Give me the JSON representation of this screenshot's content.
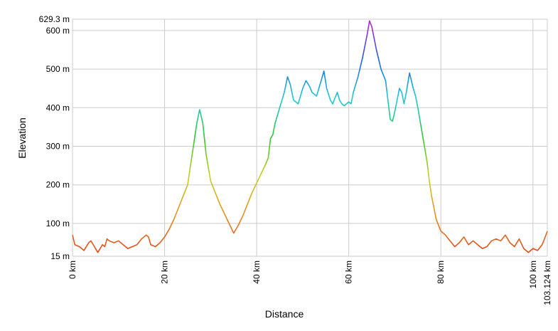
{
  "chart_data": {
    "type": "line",
    "x_label": "Distance",
    "y_label": "Elevation",
    "xlim": [
      0,
      103.124
    ],
    "ylim": [
      15,
      629.3
    ],
    "xticks": [
      {
        "value": 0,
        "label": "0 km"
      },
      {
        "value": 20,
        "label": "20 km"
      },
      {
        "value": 40,
        "label": "40 km"
      },
      {
        "value": 60,
        "label": "60 km"
      },
      {
        "value": 80,
        "label": "80 km"
      },
      {
        "value": 100,
        "label": "100 km"
      },
      {
        "value": 103.124,
        "label": "103.124 km"
      }
    ],
    "yticks": [
      {
        "value": 15,
        "label": "15 m"
      },
      {
        "value": 100,
        "label": "100 m"
      },
      {
        "value": 200,
        "label": "200 m"
      },
      {
        "value": 300,
        "label": "300 m"
      },
      {
        "value": 400,
        "label": "400 m"
      },
      {
        "value": 500,
        "label": "500 m"
      },
      {
        "value": 600,
        "label": "600 m"
      },
      {
        "value": 629.3,
        "label": "629.3 m"
      }
    ],
    "grid": true,
    "gradient_colors": [
      "#e0401c",
      "#e88a20",
      "#c8d020",
      "#30c830",
      "#20c8d8",
      "#1e60e0",
      "#c020e0"
    ],
    "series": [
      {
        "x": [
          0,
          0.5,
          1.5,
          2.5,
          3.5,
          4,
          4.5,
          5.5,
          6,
          6.5,
          7,
          7.5,
          8,
          9,
          10,
          11,
          12,
          13,
          14,
          15,
          16,
          16.5,
          17,
          18,
          19,
          20,
          21,
          22,
          23,
          24,
          25,
          26,
          27,
          27.6,
          28.3,
          29,
          30,
          31,
          32,
          33,
          34,
          35,
          36,
          37,
          38,
          39,
          40,
          41,
          42,
          42.5,
          43,
          43.5,
          44,
          45,
          46,
          46.7,
          47.3,
          48,
          49,
          50,
          50.7,
          51.5,
          52,
          53,
          54,
          54.6,
          55.2,
          56,
          56.5,
          57,
          57.5,
          58,
          58.5,
          59,
          60,
          60.5,
          61,
          62,
          63,
          64,
          64.5,
          65,
          66,
          67,
          68,
          68.5,
          69,
          69.5,
          70,
          71,
          71.5,
          72,
          72.5,
          73.2,
          74,
          74.5,
          75,
          76,
          77,
          77.5,
          78,
          79,
          80,
          81,
          82,
          83,
          84,
          85,
          86,
          87,
          88,
          89,
          90,
          91,
          92,
          93,
          94,
          95,
          96,
          97,
          98,
          99,
          100,
          101,
          102,
          102.5,
          103.124
        ],
        "values": [
          70,
          45,
          40,
          30,
          50,
          55,
          45,
          25,
          35,
          45,
          40,
          60,
          55,
          50,
          55,
          45,
          35,
          40,
          45,
          60,
          70,
          65,
          45,
          40,
          50,
          65,
          85,
          110,
          140,
          170,
          200,
          280,
          360,
          395,
          360,
          280,
          210,
          180,
          150,
          125,
          100,
          75,
          95,
          120,
          150,
          180,
          205,
          230,
          255,
          270,
          320,
          330,
          360,
          400,
          440,
          480,
          460,
          420,
          410,
          450,
          470,
          455,
          440,
          430,
          470,
          495,
          450,
          420,
          410,
          425,
          440,
          420,
          410,
          405,
          415,
          410,
          440,
          480,
          530,
          590,
          625,
          610,
          550,
          500,
          470,
          420,
          370,
          365,
          390,
          450,
          440,
          410,
          440,
          490,
          450,
          430,
          400,
          330,
          260,
          210,
          170,
          110,
          80,
          70,
          55,
          40,
          50,
          65,
          45,
          55,
          45,
          35,
          40,
          55,
          60,
          55,
          70,
          50,
          40,
          60,
          35,
          25,
          35,
          30,
          45,
          60,
          80
        ]
      }
    ]
  }
}
